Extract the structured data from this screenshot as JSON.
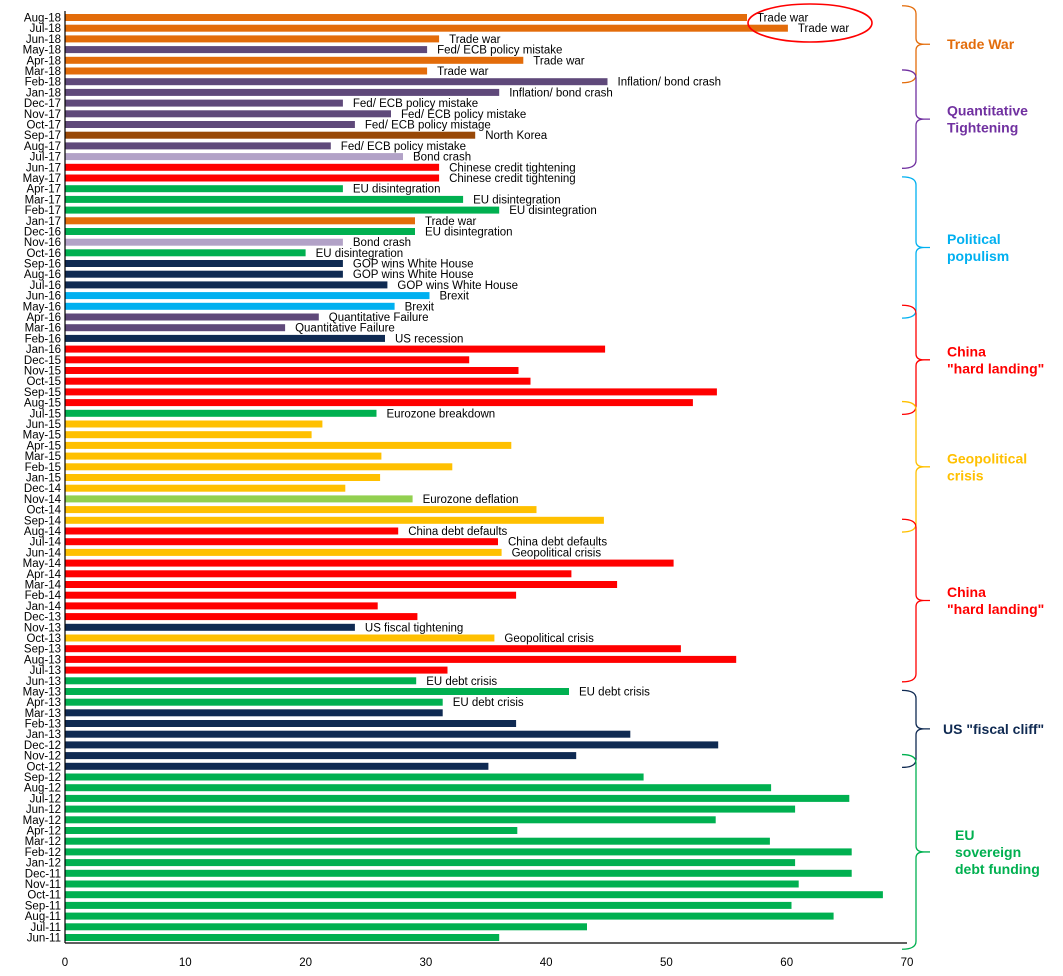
{
  "chart_data": {
    "type": "bar",
    "orientation": "horizontal",
    "title": "",
    "xlabel": "",
    "ylabel": "",
    "xlim": [
      0,
      70
    ],
    "x_ticks": [
      0,
      10,
      20,
      30,
      40,
      50,
      60,
      70
    ],
    "grid": false,
    "colors": {
      "trade_war": "#E36C0A",
      "policy": "#5F497A",
      "bond_crash": "#B2A2C7",
      "north_korea": "#984807",
      "china": "#FF0000",
      "eu": "#00B050",
      "us": "#0F2A52",
      "brexit": "#00B0F0",
      "geopolitical": "#FFC000",
      "deflation": "#92D050"
    },
    "bars": [
      {
        "month": "Aug-18",
        "value": 56.7,
        "color": "trade_war",
        "label": "Trade war"
      },
      {
        "month": "Jul-18",
        "value": 60.1,
        "color": "trade_war",
        "label": "Trade war"
      },
      {
        "month": "Jun-18",
        "value": 31.1,
        "color": "trade_war",
        "label": "Trade war"
      },
      {
        "month": "May-18",
        "value": 30.1,
        "color": "policy",
        "label": "Fed/ ECB policy mistake"
      },
      {
        "month": "Apr-18",
        "value": 38.1,
        "color": "trade_war",
        "label": "Trade war"
      },
      {
        "month": "Mar-18",
        "value": 30.1,
        "color": "trade_war",
        "label": "Trade war"
      },
      {
        "month": "Feb-18",
        "value": 45.1,
        "color": "policy",
        "label": "Inflation/ bond crash"
      },
      {
        "month": "Jan-18",
        "value": 36.1,
        "color": "policy",
        "label": "Inflation/ bond crash"
      },
      {
        "month": "Dec-17",
        "value": 23.1,
        "color": "policy",
        "label": "Fed/ ECB policy mistake"
      },
      {
        "month": "Nov-17",
        "value": 27.1,
        "color": "policy",
        "label": "Fed/ ECB policy mistake"
      },
      {
        "month": "Oct-17",
        "value": 24.1,
        "color": "policy",
        "label": "Fed/ ECB policy mistage"
      },
      {
        "month": "Sep-17",
        "value": 34.1,
        "color": "north_korea",
        "label": "North Korea"
      },
      {
        "month": "Aug-17",
        "value": 22.1,
        "color": "policy",
        "label": "Fed/ ECB policy mistake"
      },
      {
        "month": "Jul-17",
        "value": 28.1,
        "color": "bond_crash",
        "label": "Bond crash"
      },
      {
        "month": "Jun-17",
        "value": 31.1,
        "color": "china",
        "label": "Chinese credit tightening"
      },
      {
        "month": "May-17",
        "value": 31.1,
        "color": "china",
        "label": "Chinese credit tightening"
      },
      {
        "month": "Apr-17",
        "value": 23.1,
        "color": "eu",
        "label": "EU disintegration"
      },
      {
        "month": "Mar-17",
        "value": 33.1,
        "color": "eu",
        "label": "EU disintegration"
      },
      {
        "month": "Feb-17",
        "value": 36.1,
        "color": "eu",
        "label": "EU disintegration"
      },
      {
        "month": "Jan-17",
        "value": 29.1,
        "color": "trade_war",
        "label": "Trade war"
      },
      {
        "month": "Dec-16",
        "value": 29.1,
        "color": "eu",
        "label": "EU disintegration"
      },
      {
        "month": "Nov-16",
        "value": 23.1,
        "color": "bond_crash",
        "label": "Bond crash"
      },
      {
        "month": "Oct-16",
        "value": 20.0,
        "color": "eu",
        "label": "EU disintegration"
      },
      {
        "month": "Sep-16",
        "value": 23.1,
        "color": "us",
        "label": "GOP wins White House"
      },
      {
        "month": "Aug-16",
        "value": 23.1,
        "color": "us",
        "label": "GOP wins White House"
      },
      {
        "month": "Jul-16",
        "value": 26.8,
        "color": "us",
        "label": "GOP wins White House"
      },
      {
        "month": "Jun-16",
        "value": 30.3,
        "color": "brexit",
        "label": "Brexit"
      },
      {
        "month": "May-16",
        "value": 27.4,
        "color": "brexit",
        "label": "Brexit"
      },
      {
        "month": "Apr-16",
        "value": 21.1,
        "color": "policy",
        "label": "Quantitative Failure"
      },
      {
        "month": "Mar-16",
        "value": 18.3,
        "color": "policy",
        "label": "Quantitative Failure"
      },
      {
        "month": "Feb-16",
        "value": 26.6,
        "color": "us",
        "label": "US recession"
      },
      {
        "month": "Jan-16",
        "value": 44.9,
        "color": "china",
        "label": ""
      },
      {
        "month": "Dec-15",
        "value": 33.6,
        "color": "china",
        "label": ""
      },
      {
        "month": "Nov-15",
        "value": 37.7,
        "color": "china",
        "label": ""
      },
      {
        "month": "Oct-15",
        "value": 38.7,
        "color": "china",
        "label": ""
      },
      {
        "month": "Sep-15",
        "value": 54.2,
        "color": "china",
        "label": ""
      },
      {
        "month": "Aug-15",
        "value": 52.2,
        "color": "china",
        "label": ""
      },
      {
        "month": "Jul-15",
        "value": 25.9,
        "color": "eu",
        "label": "Eurozone breakdown"
      },
      {
        "month": "Jun-15",
        "value": 21.4,
        "color": "geopolitical",
        "label": ""
      },
      {
        "month": "May-15",
        "value": 20.5,
        "color": "geopolitical",
        "label": ""
      },
      {
        "month": "Apr-15",
        "value": 37.1,
        "color": "geopolitical",
        "label": ""
      },
      {
        "month": "Mar-15",
        "value": 26.3,
        "color": "geopolitical",
        "label": ""
      },
      {
        "month": "Feb-15",
        "value": 32.2,
        "color": "geopolitical",
        "label": ""
      },
      {
        "month": "Jan-15",
        "value": 26.2,
        "color": "geopolitical",
        "label": ""
      },
      {
        "month": "Dec-14",
        "value": 23.3,
        "color": "geopolitical",
        "label": ""
      },
      {
        "month": "Nov-14",
        "value": 28.9,
        "color": "deflation",
        "label": "Eurozone deflation"
      },
      {
        "month": "Oct-14",
        "value": 39.2,
        "color": "geopolitical",
        "label": ""
      },
      {
        "month": "Sep-14",
        "value": 44.8,
        "color": "geopolitical",
        "label": ""
      },
      {
        "month": "Aug-14",
        "value": 27.7,
        "color": "china",
        "label": "China debt defaults"
      },
      {
        "month": "Jul-14",
        "value": 36.0,
        "color": "china",
        "label": "China debt defaults"
      },
      {
        "month": "Jun-14",
        "value": 36.3,
        "color": "geopolitical",
        "label": "Geopolitical crisis"
      },
      {
        "month": "May-14",
        "value": 50.6,
        "color": "china",
        "label": ""
      },
      {
        "month": "Apr-14",
        "value": 42.1,
        "color": "china",
        "label": ""
      },
      {
        "month": "Mar-14",
        "value": 45.9,
        "color": "china",
        "label": ""
      },
      {
        "month": "Feb-14",
        "value": 37.5,
        "color": "china",
        "label": ""
      },
      {
        "month": "Jan-14",
        "value": 26.0,
        "color": "china",
        "label": ""
      },
      {
        "month": "Dec-13",
        "value": 29.3,
        "color": "china",
        "label": ""
      },
      {
        "month": "Nov-13",
        "value": 24.1,
        "color": "us",
        "label": "US fiscal tightening"
      },
      {
        "month": "Oct-13",
        "value": 35.7,
        "color": "geopolitical",
        "label": "Geopolitical crisis"
      },
      {
        "month": "Sep-13",
        "value": 51.2,
        "color": "china",
        "label": ""
      },
      {
        "month": "Aug-13",
        "value": 55.8,
        "color": "china",
        "label": ""
      },
      {
        "month": "Jul-13",
        "value": 31.8,
        "color": "china",
        "label": ""
      },
      {
        "month": "Jun-13",
        "value": 29.2,
        "color": "eu",
        "label": "EU debt crisis"
      },
      {
        "month": "May-13",
        "value": 41.9,
        "color": "eu",
        "label": "EU debt crisis"
      },
      {
        "month": "Apr-13",
        "value": 31.4,
        "color": "eu",
        "label": "EU debt crisis"
      },
      {
        "month": "Mar-13",
        "value": 31.4,
        "color": "us",
        "label": ""
      },
      {
        "month": "Feb-13",
        "value": 37.5,
        "color": "us",
        "label": ""
      },
      {
        "month": "Jan-13",
        "value": 47.0,
        "color": "us",
        "label": ""
      },
      {
        "month": "Dec-12",
        "value": 54.3,
        "color": "us",
        "label": ""
      },
      {
        "month": "Nov-12",
        "value": 42.5,
        "color": "us",
        "label": ""
      },
      {
        "month": "Oct-12",
        "value": 35.2,
        "color": "us",
        "label": ""
      },
      {
        "month": "Sep-12",
        "value": 48.1,
        "color": "eu",
        "label": ""
      },
      {
        "month": "Aug-12",
        "value": 58.7,
        "color": "eu",
        "label": ""
      },
      {
        "month": "Jul-12",
        "value": 65.2,
        "color": "eu",
        "label": ""
      },
      {
        "month": "Jun-12",
        "value": 60.7,
        "color": "eu",
        "label": ""
      },
      {
        "month": "May-12",
        "value": 54.1,
        "color": "eu",
        "label": ""
      },
      {
        "month": "Apr-12",
        "value": 37.6,
        "color": "eu",
        "label": ""
      },
      {
        "month": "Mar-12",
        "value": 58.6,
        "color": "eu",
        "label": ""
      },
      {
        "month": "Feb-12",
        "value": 65.4,
        "color": "eu",
        "label": ""
      },
      {
        "month": "Jan-12",
        "value": 60.7,
        "color": "eu",
        "label": ""
      },
      {
        "month": "Dec-11",
        "value": 65.4,
        "color": "eu",
        "label": ""
      },
      {
        "month": "Nov-11",
        "value": 61.0,
        "color": "eu",
        "label": ""
      },
      {
        "month": "Oct-11",
        "value": 68.0,
        "color": "eu",
        "label": ""
      },
      {
        "month": "Sep-11",
        "value": 60.4,
        "color": "eu",
        "label": ""
      },
      {
        "month": "Aug-11",
        "value": 63.9,
        "color": "eu",
        "label": ""
      },
      {
        "month": "Jul-11",
        "value": 43.4,
        "color": "eu",
        "label": ""
      },
      {
        "month": "Jun-11",
        "value": 36.1,
        "color": "eu",
        "label": ""
      }
    ],
    "highlight": {
      "months": [
        "Aug-18",
        "Jul-18"
      ],
      "shape": "ellipse",
      "color": "#FF0000"
    },
    "regimes": [
      {
        "label": [
          "Trade War"
        ],
        "from": "Aug-18",
        "to": "Mar-18",
        "color": "#E36C0A"
      },
      {
        "label": [
          "Quantitative",
          "Tightening"
        ],
        "from": "Feb-18",
        "to": "Jul-17",
        "color": "#7030A0"
      },
      {
        "label": [
          "Political",
          "populism"
        ],
        "from": "Apr-17",
        "to": "May-16",
        "color": "#00B0F0"
      },
      {
        "label": [
          "China",
          "\"hard landing\""
        ],
        "from": "Apr-16",
        "to": "Aug-15",
        "color": "#FF0000"
      },
      {
        "label": [
          "Geopolitical",
          "crisis"
        ],
        "from": "Jul-15",
        "to": "Sep-14",
        "color": "#FFC000"
      },
      {
        "label": [
          "China",
          "\"hard landing\""
        ],
        "from": "Aug-14",
        "to": "Jul-13",
        "color": "#FF0000"
      },
      {
        "label": [
          "US \"fiscal cliff\""
        ],
        "from": "Apr-13",
        "to": "Nov-12",
        "color": "#0F2A52"
      },
      {
        "label": [
          "EU",
          "sovereign",
          "debt funding"
        ],
        "from": "Oct-12",
        "to": "Jun-11",
        "color": "#00B050"
      }
    ]
  }
}
